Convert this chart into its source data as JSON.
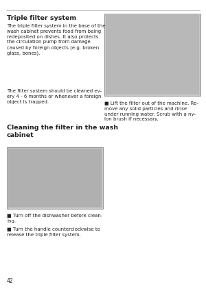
{
  "bg_color": "#ffffff",
  "page_number": "42",
  "title": "Triple filter system",
  "body_text_1": "The triple filter system in the base of the\nwash cabinet prevents food from being\nredeposited on dishes. It also protects\nthe circulation pump from damage\ncaused by foreign objects (e.g. broken\nglass, bones).",
  "body_text_2": "The filter system should be cleaned ev-\nery 4 - 6 months or whenever a foreign\nobject is trapped.",
  "section_title": "Cleaning the filter in the wash\ncabinet",
  "bullet1_text": "Lift the filter out of the machine. Re-\nmove any solid particles and rinse\nunder running water. Scrub with a ny-\nlon brush if necessary.",
  "bullet2_text": "Turn off the dishwasher before clean-\ning.",
  "bullet3_text": "Turn the handle counterclockwise to\nrelease the triple filter system.",
  "body_fontsize": 5.0,
  "title_fontsize": 6.8,
  "section_fontsize": 6.8,
  "page_fontsize": 5.5,
  "line_color": "#aaaaaa",
  "text_color": "#222222",
  "img_color": "#c8c8c8",
  "img_border": "#888888"
}
